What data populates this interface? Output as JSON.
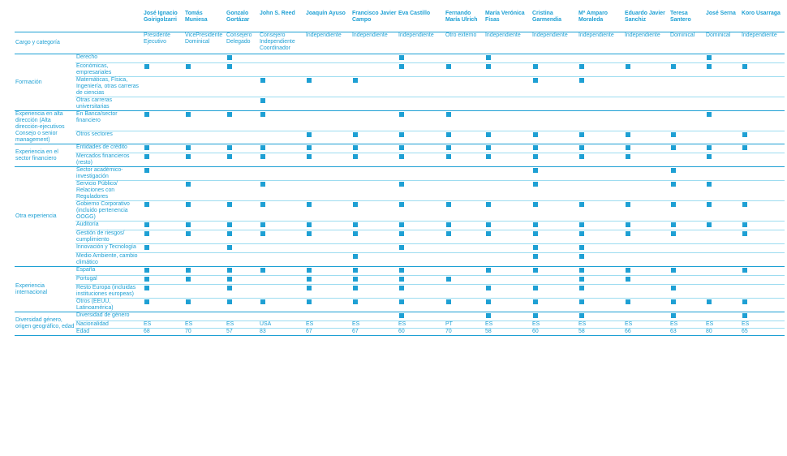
{
  "header": {
    "blank": "",
    "directors": [
      "José Ignacio Goirigolzarri",
      "Tomás Muniesa",
      "Gonzalo Gortázar",
      "John S. Reed",
      "Joaquín Ayuso",
      "Francisco Javier Campo",
      "Eva Castillo",
      "Fernando María Ulrich",
      "María Verónica Fisas",
      "Cristina Garmendia",
      "Mª Amparo Moraleda",
      "Eduardo Javier Sanchiz",
      "Teresa Santero",
      "José Serna",
      "Koro Usarraga"
    ]
  },
  "cargo": {
    "label": "Cargo y categoría",
    "values": [
      "Presidente Ejecutivo",
      "VicePresidente Dominical",
      "Consejero Delegado",
      "Consejero Independiente Coordinador",
      "Independiente",
      "Independiente",
      "Independiente",
      "Otro externo",
      "Independiente",
      "Independiente",
      "Independiente",
      "Independiente",
      "Dominical",
      "Dominical",
      "Independiente"
    ]
  },
  "groups": [
    {
      "label": "Formación",
      "rows": [
        {
          "label": "Derecho",
          "marks": [
            0,
            0,
            1,
            0,
            0,
            0,
            1,
            0,
            1,
            0,
            0,
            0,
            0,
            1,
            0
          ]
        },
        {
          "label": "Económicas, empresariales",
          "marks": [
            1,
            1,
            1,
            0,
            0,
            0,
            1,
            1,
            1,
            1,
            1,
            1,
            1,
            1,
            1
          ]
        },
        {
          "label": "Matemáticas, Física, Ingeniería, otras carreras de ciencias",
          "marks": [
            0,
            0,
            0,
            1,
            1,
            1,
            0,
            0,
            0,
            1,
            1,
            0,
            0,
            0,
            0
          ]
        },
        {
          "label": "Otras carreras universitarias",
          "marks": [
            0,
            0,
            0,
            1,
            0,
            0,
            0,
            0,
            0,
            0,
            0,
            0,
            0,
            0,
            0
          ]
        }
      ]
    },
    {
      "label": "Experiencia en alta dirección (Alta dirección-ejecutivos Consejo o senior management)",
      "rows": [
        {
          "label": "En Banca/sector financiero",
          "marks": [
            1,
            1,
            1,
            1,
            0,
            0,
            1,
            1,
            0,
            0,
            0,
            0,
            0,
            1,
            0
          ]
        },
        {
          "label": "Otros sectores",
          "marks": [
            0,
            0,
            0,
            0,
            1,
            1,
            1,
            1,
            1,
            1,
            1,
            1,
            1,
            0,
            1
          ]
        }
      ]
    },
    {
      "label": "Experiencia en el sector financiero",
      "rows": [
        {
          "label": "Entidades de crédito",
          "marks": [
            1,
            1,
            1,
            1,
            1,
            1,
            1,
            1,
            1,
            1,
            1,
            1,
            1,
            1,
            1
          ]
        },
        {
          "label": "Mercados financieros (resto)",
          "marks": [
            1,
            1,
            1,
            1,
            1,
            1,
            1,
            1,
            1,
            1,
            1,
            1,
            0,
            1,
            0
          ]
        }
      ]
    },
    {
      "label": "Otra experiencia",
      "rows": [
        {
          "label": "Sector académico-investigación",
          "marks": [
            1,
            0,
            0,
            0,
            0,
            0,
            0,
            0,
            0,
            1,
            0,
            0,
            1,
            0,
            0
          ]
        },
        {
          "label": "Servicio Público/ Relaciones con Reguladores",
          "marks": [
            0,
            1,
            0,
            1,
            0,
            0,
            1,
            0,
            0,
            1,
            0,
            0,
            1,
            1,
            0
          ]
        },
        {
          "label": "Gobierno Corporativo (incluido pertenencia OOGG)",
          "marks": [
            1,
            1,
            1,
            1,
            1,
            1,
            1,
            1,
            1,
            1,
            1,
            1,
            1,
            1,
            1
          ]
        },
        {
          "label": "Auditoría",
          "marks": [
            1,
            1,
            1,
            1,
            1,
            1,
            1,
            1,
            1,
            1,
            1,
            1,
            1,
            1,
            1
          ]
        },
        {
          "label": "Gestión de riesgos/ cumplimiento",
          "marks": [
            1,
            1,
            1,
            1,
            1,
            1,
            1,
            1,
            1,
            1,
            1,
            1,
            1,
            0,
            1
          ]
        },
        {
          "label": "Innovación y Tecnología",
          "marks": [
            1,
            0,
            1,
            0,
            0,
            0,
            1,
            0,
            0,
            1,
            1,
            0,
            0,
            0,
            0
          ]
        },
        {
          "label": "Medio Ambiente, cambio climático",
          "marks": [
            0,
            0,
            0,
            0,
            0,
            1,
            0,
            0,
            0,
            1,
            1,
            0,
            0,
            0,
            0
          ]
        }
      ]
    },
    {
      "label": "Experiencia internacional",
      "rows": [
        {
          "label": "España",
          "marks": [
            1,
            1,
            1,
            1,
            1,
            1,
            1,
            0,
            1,
            1,
            1,
            1,
            1,
            0,
            1
          ]
        },
        {
          "label": "Portugal",
          "marks": [
            1,
            1,
            1,
            0,
            1,
            1,
            1,
            1,
            0,
            0,
            1,
            1,
            0,
            0,
            0
          ]
        },
        {
          "label": "Resto Europa (incluidas instituciones europeas)",
          "marks": [
            1,
            0,
            1,
            0,
            1,
            1,
            1,
            0,
            1,
            1,
            1,
            0,
            1,
            0,
            0
          ]
        },
        {
          "label": "Otros (EEUU, Latinoamérica)",
          "marks": [
            1,
            1,
            1,
            1,
            1,
            1,
            1,
            1,
            1,
            1,
            1,
            1,
            1,
            1,
            1
          ]
        }
      ]
    },
    {
      "label": "Diversidad género, origen geográfico, edad",
      "rows": [
        {
          "label": "Diversidad de género",
          "marks": [
            0,
            0,
            0,
            0,
            0,
            0,
            1,
            0,
            1,
            1,
            1,
            0,
            1,
            0,
            1
          ]
        }
      ],
      "text_rows": [
        {
          "label": "Nacionalidad",
          "values": [
            "ES",
            "ES",
            "ES",
            "USA",
            "ES",
            "ES",
            "ES",
            "PT",
            "ES",
            "ES",
            "ES",
            "ES",
            "ES",
            "ES",
            "ES"
          ]
        },
        {
          "label": "Edad",
          "values": [
            "68",
            "70",
            "57",
            "83",
            "67",
            "67",
            "60",
            "70",
            "58",
            "60",
            "58",
            "66",
            "63",
            "80",
            "65"
          ]
        }
      ]
    }
  ],
  "colors": {
    "accent": "#1ea0d4",
    "rule_light": "#9ddcf0"
  },
  "icons": {
    "mark": "filled-square"
  }
}
